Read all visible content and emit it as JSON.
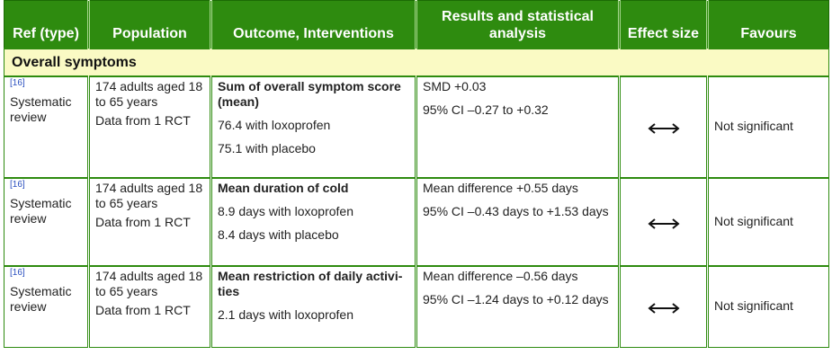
{
  "headers": {
    "ref": "Ref (type)",
    "population": "Population",
    "outcome": "Outcome, Interventions",
    "results": "Results and statistical analysis",
    "effect": "Effect size",
    "favours": "Favours"
  },
  "section_title": "Overall symptoms",
  "rows": [
    {
      "ref_num": "[16]",
      "ref_type": "Systematic review",
      "population_1": "174 adults aged 18 to 65 years",
      "population_2": "Data from 1 RCT",
      "outcome_title": "Sum of overall symptom score (mean)",
      "interventions": [
        "76.4 with loxoprofen",
        "75.1 with placebo"
      ],
      "result_1": "SMD +0.03",
      "result_2": "95% CI –0.27 to +0.32",
      "effect_icon": "double-arrow-icon",
      "favours": "Not significant"
    },
    {
      "ref_num": "[16]",
      "ref_type": "Systematic review",
      "population_1": "174 adults aged 18 to 65 years",
      "population_2": "Data from 1 RCT",
      "outcome_title": "Mean duration of cold",
      "interventions": [
        "8.9 days with loxoprofen",
        "8.4 days with placebo"
      ],
      "result_1": "Mean difference +0.55 days",
      "result_2": "95% CI –0.43 days to +1.53 days",
      "effect_icon": "double-arrow-icon",
      "favours": "Not significant"
    },
    {
      "ref_num": "[16]",
      "ref_type": "Systematic review",
      "population_1": "174 adults aged 18 to 65 years",
      "population_2": "Data from 1 RCT",
      "outcome_title": "Mean restriction of daily activi-ties",
      "interventions": [
        "2.1 days with loxoprofen"
      ],
      "result_1": "Mean difference –0.56 days",
      "result_2": "95% CI –1.24 days to +0.12 days",
      "effect_icon": "double-arrow-icon",
      "favours": "Not significant"
    }
  ],
  "colors": {
    "header_bg": "#2e8b0f",
    "section_bg": "#fafac4",
    "ref_link": "#2a4fbf"
  }
}
